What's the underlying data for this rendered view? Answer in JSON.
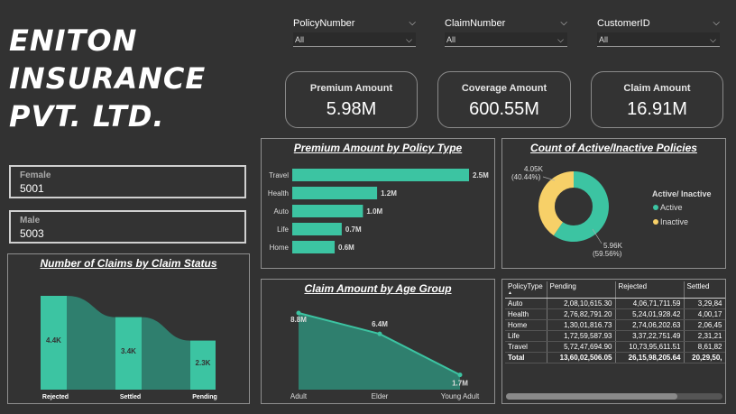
{
  "company": {
    "line1": "ENITON",
    "line2": "INSURANCE",
    "line3": "PVT. LTD."
  },
  "slicers": [
    {
      "label": "PolicyNumber",
      "value": "All"
    },
    {
      "label": "ClaimNumber",
      "value": "All"
    },
    {
      "label": "CustomerID",
      "value": "All"
    }
  ],
  "kpis": [
    {
      "label": "Premium Amount",
      "value": "5.98M"
    },
    {
      "label": "Coverage Amount",
      "value": "600.55M"
    },
    {
      "label": "Claim Amount",
      "value": "16.91M"
    }
  ],
  "gender": [
    {
      "label": "Female",
      "value": "5001"
    },
    {
      "label": "Male",
      "value": "5003"
    }
  ],
  "colors": {
    "teal": "#3cc4a2",
    "yellow": "#f7d068",
    "dark_teal": "#2f7f6e",
    "bg": "#323232"
  },
  "chart_data": [
    {
      "id": "premium_by_policy",
      "type": "bar",
      "orientation": "horizontal",
      "title": "Premium Amount by Policy Type",
      "categories": [
        "Travel",
        "Health",
        "Auto",
        "Life",
        "Home"
      ],
      "values": [
        2.5,
        1.2,
        1.0,
        0.7,
        0.6
      ],
      "labels": [
        "2.5M",
        "1.2M",
        "1.0M",
        "0.7M",
        "0.6M"
      ],
      "unit": "M"
    },
    {
      "id": "active_inactive",
      "type": "pie",
      "donut": true,
      "title": "Count of Active/Inactive Policies",
      "legend_title": "Active/ Inactive",
      "legend_position": "right",
      "slices": [
        {
          "name": "Active",
          "value": 5.96,
          "label": "5.96K",
          "pct": "(59.56%)"
        },
        {
          "name": "Inactive",
          "value": 4.05,
          "label": "4.05K",
          "pct": "(40.44%)"
        }
      ]
    },
    {
      "id": "claims_by_status",
      "type": "area",
      "title": "Number of Claims by Claim Status",
      "categories": [
        "Rejected",
        "Settled",
        "Pending"
      ],
      "values": [
        4.4,
        3.4,
        2.3
      ],
      "labels": [
        "4.4K",
        "3.4K",
        "2.3K"
      ],
      "unit": "K"
    },
    {
      "id": "claim_by_age",
      "type": "area",
      "title": "Claim Amount by Age Group",
      "categories": [
        "Adult",
        "Elder",
        "Young Adult"
      ],
      "values": [
        8.8,
        6.4,
        1.7
      ],
      "labels": [
        "8.8M",
        "6.4M",
        "1.7M"
      ],
      "unit": "M"
    },
    {
      "id": "policy_matrix",
      "type": "table",
      "columns": [
        "PolicyType",
        "Pending",
        "Rejected",
        "Settled"
      ],
      "rows": [
        [
          "Auto",
          "2,08,10,615.30",
          "4,06,71,711.59",
          "3,29,84"
        ],
        [
          "Health",
          "2,76,82,791.20",
          "5,24,01,928.42",
          "4,00,17"
        ],
        [
          "Home",
          "1,30,01,816.73",
          "2,74,06,202.63",
          "2,06,45"
        ],
        [
          "Life",
          "1,72,59,587.93",
          "3,37,22,751.49",
          "2,31,21"
        ],
        [
          "Travel",
          "5,72,47,694.90",
          "10,73,95,611.51",
          "8,61,82"
        ]
      ],
      "total": [
        "Total",
        "13,60,02,506.05",
        "26,15,98,205.64",
        "20,29,50,"
      ]
    }
  ]
}
